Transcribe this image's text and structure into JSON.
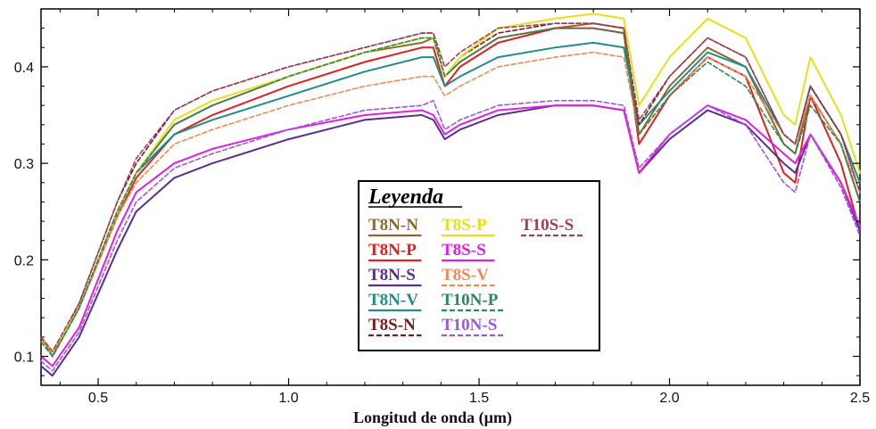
{
  "chart_data": {
    "type": "line",
    "title": "",
    "xlabel": "Longitud de onda (µm)",
    "ylabel": "",
    "xlim": [
      0.35,
      2.5
    ],
    "ylim": [
      0.07,
      0.46
    ],
    "x_ticks": [
      {
        "value": 0.5,
        "label": "0.5"
      },
      {
        "value": 1.0,
        "label": "1.0"
      },
      {
        "value": 1.5,
        "label": "1.5"
      },
      {
        "value": 2.0,
        "label": "2.0"
      },
      {
        "value": 2.5,
        "label": "2.5"
      }
    ],
    "y_ticks": [
      {
        "value": 0.1,
        "label": "0.1"
      },
      {
        "value": 0.2,
        "label": "0.2"
      },
      {
        "value": 0.3,
        "label": "0.3"
      },
      {
        "value": 0.4,
        "label": "0.4"
      }
    ],
    "grid": false,
    "legend": {
      "title": "Leyenda",
      "placement": "center"
    },
    "x": [
      0.35,
      0.38,
      0.45,
      0.55,
      0.6,
      0.7,
      0.8,
      1.0,
      1.2,
      1.35,
      1.38,
      1.41,
      1.45,
      1.55,
      1.7,
      1.8,
      1.88,
      1.92,
      2.0,
      2.1,
      2.2,
      2.3,
      2.33,
      2.37,
      2.45,
      2.5
    ],
    "series": [
      {
        "name": "T8N-N",
        "color": "#8b6a2b",
        "dashed": false,
        "legend_col": 0,
        "legend_row": 0,
        "values": [
          0.12,
          0.105,
          0.15,
          0.25,
          0.29,
          0.34,
          0.36,
          0.39,
          0.415,
          0.425,
          0.43,
          0.39,
          0.405,
          0.43,
          0.44,
          0.445,
          0.44,
          0.33,
          0.38,
          0.42,
          0.4,
          0.32,
          0.31,
          0.37,
          0.32,
          0.26
        ]
      },
      {
        "name": "T8N-P",
        "color": "#e02020",
        "dashed": false,
        "legend_col": 0,
        "legend_row": 1,
        "values": [
          0.12,
          0.1,
          0.15,
          0.245,
          0.285,
          0.33,
          0.35,
          0.38,
          0.405,
          0.42,
          0.42,
          0.38,
          0.4,
          0.425,
          0.44,
          0.44,
          0.435,
          0.32,
          0.37,
          0.41,
          0.39,
          0.29,
          0.28,
          0.37,
          0.3,
          0.23
        ]
      },
      {
        "name": "T8N-S",
        "color": "#5a2d91",
        "dashed": false,
        "legend_col": 0,
        "legend_row": 2,
        "values": [
          0.09,
          0.08,
          0.12,
          0.21,
          0.25,
          0.285,
          0.3,
          0.325,
          0.345,
          0.35,
          0.345,
          0.325,
          0.335,
          0.35,
          0.36,
          0.36,
          0.355,
          0.29,
          0.325,
          0.355,
          0.34,
          0.3,
          0.29,
          0.33,
          0.28,
          0.23
        ]
      },
      {
        "name": "T8N-V",
        "color": "#1f8f87",
        "dashed": false,
        "legend_col": 0,
        "legend_row": 3,
        "values": [
          0.12,
          0.1,
          0.15,
          0.25,
          0.29,
          0.33,
          0.345,
          0.37,
          0.395,
          0.41,
          0.41,
          0.38,
          0.39,
          0.41,
          0.42,
          0.425,
          0.42,
          0.34,
          0.375,
          0.415,
          0.4,
          0.33,
          0.32,
          0.38,
          0.33,
          0.28
        ]
      },
      {
        "name": "T8S-N",
        "color": "#7a1c1c",
        "dashed": true,
        "legend_col": 0,
        "legend_row": 4,
        "values": [
          0.12,
          0.1,
          0.155,
          0.26,
          0.3,
          0.355,
          0.375,
          0.4,
          0.42,
          0.435,
          0.435,
          0.39,
          0.41,
          0.435,
          0.445,
          0.445,
          0.44,
          0.34,
          0.39,
          0.43,
          0.41,
          0.33,
          0.32,
          0.38,
          0.33,
          0.27
        ]
      },
      {
        "name": "T8S-P",
        "color": "#e6e01a",
        "dashed": false,
        "legend_col": 1,
        "legend_row": 0,
        "values": [
          0.12,
          0.105,
          0.15,
          0.25,
          0.29,
          0.345,
          0.365,
          0.39,
          0.415,
          0.43,
          0.43,
          0.39,
          0.41,
          0.44,
          0.45,
          0.455,
          0.45,
          0.36,
          0.41,
          0.45,
          0.43,
          0.35,
          0.34,
          0.41,
          0.35,
          0.29
        ]
      },
      {
        "name": "T8S-S",
        "color": "#e020e0",
        "dashed": false,
        "legend_col": 1,
        "legend_row": 1,
        "values": [
          0.1,
          0.09,
          0.13,
          0.23,
          0.27,
          0.3,
          0.315,
          0.335,
          0.35,
          0.355,
          0.35,
          0.33,
          0.34,
          0.355,
          0.36,
          0.36,
          0.355,
          0.29,
          0.33,
          0.36,
          0.345,
          0.31,
          0.3,
          0.33,
          0.28,
          0.235
        ]
      },
      {
        "name": "T8S-V",
        "color": "#f08a50",
        "dashed": true,
        "legend_col": 1,
        "legend_row": 2,
        "values": [
          0.12,
          0.1,
          0.15,
          0.245,
          0.28,
          0.32,
          0.335,
          0.36,
          0.38,
          0.39,
          0.39,
          0.37,
          0.38,
          0.4,
          0.41,
          0.415,
          0.41,
          0.33,
          0.37,
          0.41,
          0.39,
          0.33,
          0.32,
          0.37,
          0.32,
          0.27
        ]
      },
      {
        "name": "T10N-P",
        "color": "#2a8a5a",
        "dashed": true,
        "legend_col": 1,
        "legend_row": 3,
        "values": [
          0.115,
          0.1,
          0.15,
          0.25,
          0.29,
          0.34,
          0.36,
          0.39,
          0.415,
          0.43,
          0.43,
          0.39,
          0.405,
          0.43,
          0.44,
          0.44,
          0.435,
          0.33,
          0.37,
          0.405,
          0.38,
          0.32,
          0.31,
          0.36,
          0.32,
          0.26
        ]
      },
      {
        "name": "T10N-S",
        "color": "#a055e0",
        "dashed": true,
        "legend_col": 1,
        "legend_row": 4,
        "values": [
          0.095,
          0.085,
          0.125,
          0.22,
          0.26,
          0.295,
          0.31,
          0.335,
          0.355,
          0.36,
          0.365,
          0.335,
          0.345,
          0.36,
          0.365,
          0.365,
          0.36,
          0.295,
          0.33,
          0.36,
          0.34,
          0.28,
          0.27,
          0.33,
          0.275,
          0.225
        ]
      },
      {
        "name": "T10S-S",
        "color": "#a0405a",
        "dashed": true,
        "legend_col": 2,
        "legend_row": 0,
        "values": [
          0.12,
          0.105,
          0.155,
          0.26,
          0.305,
          0.355,
          0.375,
          0.4,
          0.42,
          0.435,
          0.435,
          0.4,
          0.415,
          0.44,
          0.445,
          0.445,
          0.44,
          0.345,
          0.39,
          0.43,
          0.41,
          0.33,
          0.32,
          0.38,
          0.33,
          0.27
        ]
      }
    ]
  }
}
